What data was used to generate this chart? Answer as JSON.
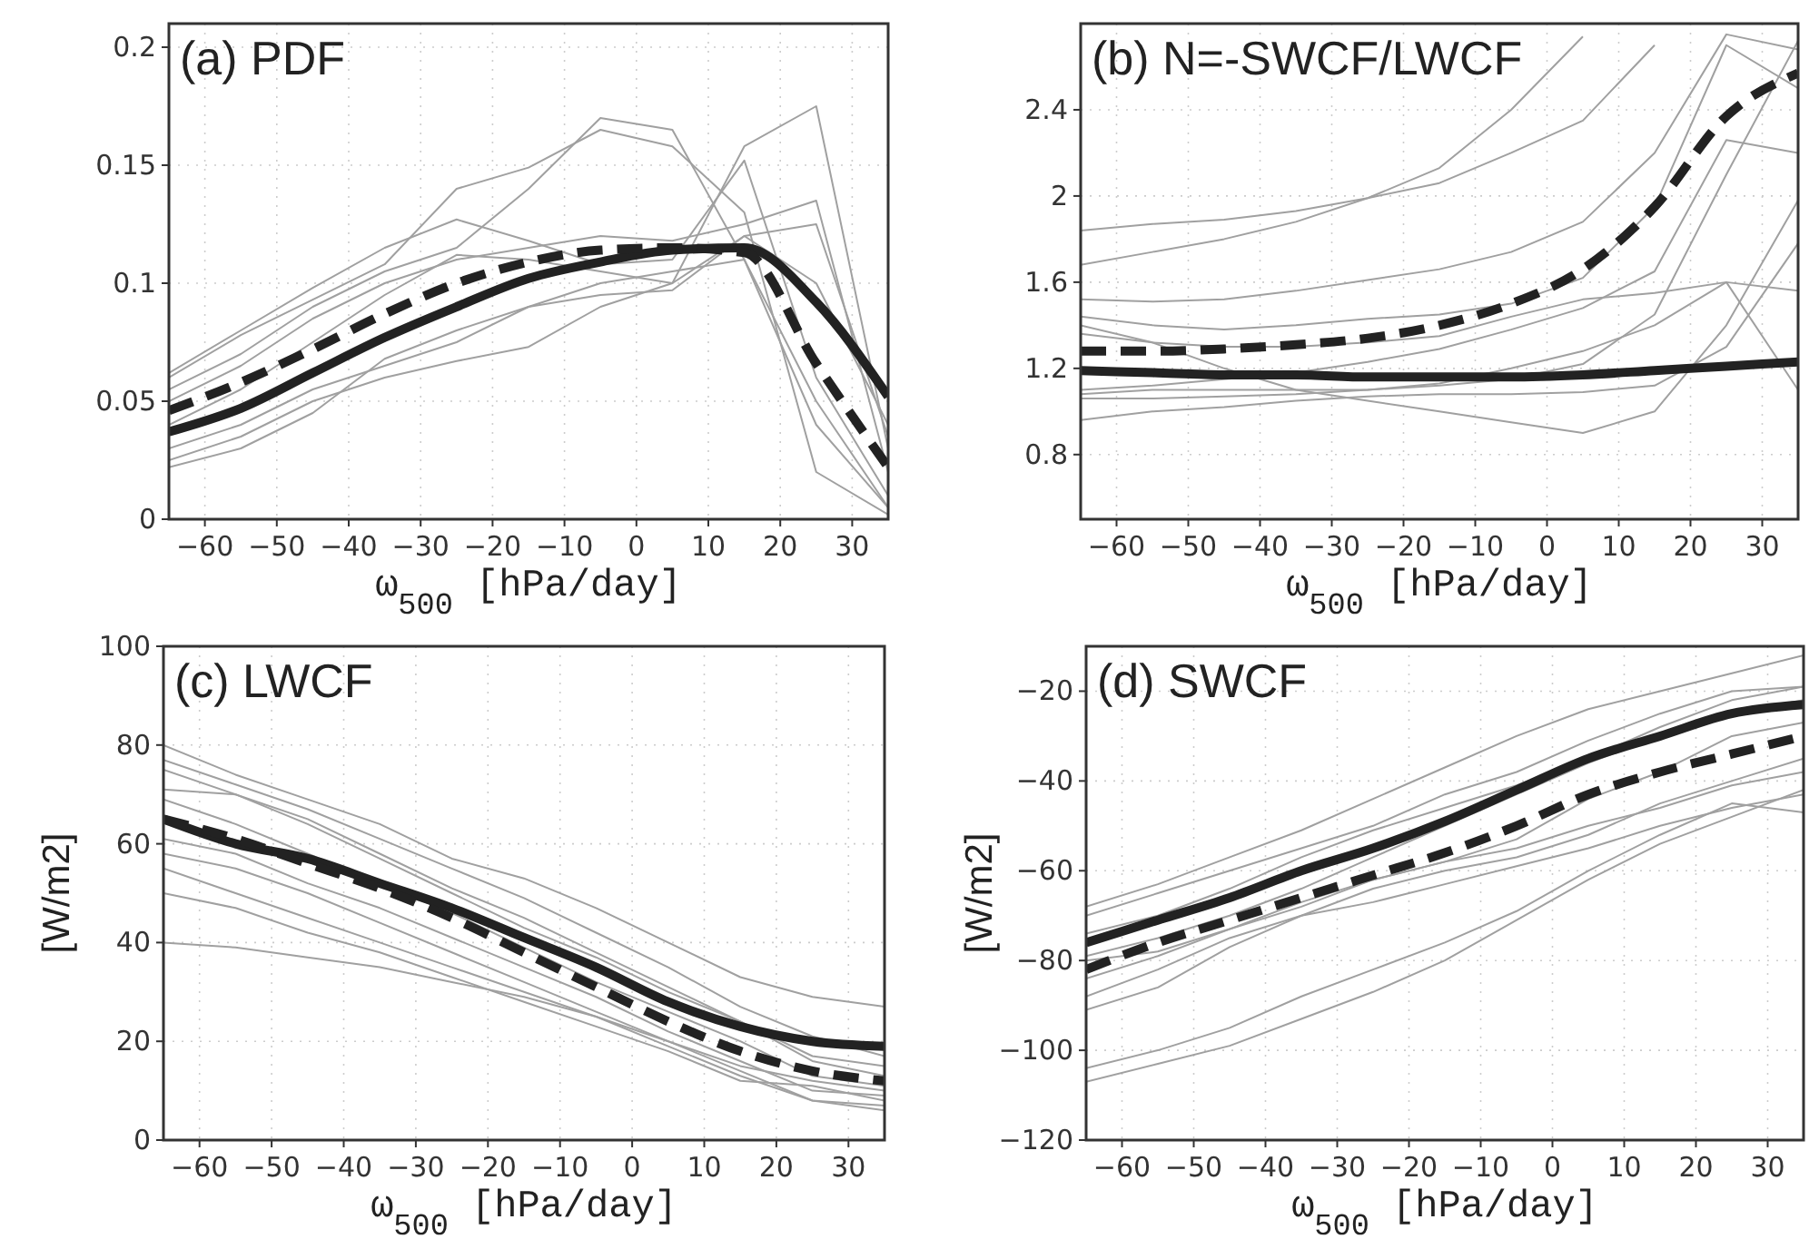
{
  "chart_data": [
    {
      "type": "line",
      "title": "(a) PDF",
      "xlabel": "ω$_{500}$ [hPa/day]",
      "x": [
        -65,
        -55,
        -45,
        -35,
        -25,
        -15,
        -5,
        5,
        15,
        25,
        35
      ],
      "xlim": [
        -65,
        35
      ],
      "xticks": [
        -60,
        -50,
        -40,
        -30,
        -20,
        -10,
        0,
        10,
        20,
        30
      ],
      "ylim": [
        0,
        0.21
      ],
      "yticks": [
        0,
        0.05,
        0.1,
        0.15,
        0.2
      ],
      "grid": true,
      "series": [
        {
          "color": "#a0a0a0",
          "values": [
            0.062,
            0.08,
            0.098,
            0.115,
            0.127,
            0.118,
            0.108,
            0.11,
            0.152,
            0.06,
            0.01
          ]
        },
        {
          "color": "#a0a0a0",
          "values": [
            0.055,
            0.07,
            0.09,
            0.105,
            0.115,
            0.14,
            0.17,
            0.165,
            0.11,
            0.05,
            0.005
          ]
        },
        {
          "color": "#a0a0a0",
          "values": [
            0.05,
            0.065,
            0.085,
            0.1,
            0.11,
            0.115,
            0.12,
            0.118,
            0.125,
            0.135,
            0.02
          ]
        },
        {
          "color": "#a0a0a0",
          "values": [
            0.04,
            0.055,
            0.075,
            0.095,
            0.112,
            0.11,
            0.105,
            0.1,
            0.158,
            0.175,
            0.03
          ]
        },
        {
          "color": "#a0a0a0",
          "values": [
            0.03,
            0.04,
            0.055,
            0.065,
            0.075,
            0.09,
            0.1,
            0.105,
            0.11,
            0.04,
            0.005
          ]
        },
        {
          "color": "#a0a0a0",
          "values": [
            0.025,
            0.035,
            0.05,
            0.06,
            0.067,
            0.073,
            0.09,
            0.1,
            0.12,
            0.125,
            0.035
          ]
        },
        {
          "color": "#a0a0a0",
          "values": [
            0.06,
            0.078,
            0.093,
            0.108,
            0.14,
            0.149,
            0.165,
            0.158,
            0.13,
            0.02,
            0.002
          ]
        },
        {
          "color": "#a0a0a0",
          "values": [
            0.022,
            0.03,
            0.045,
            0.068,
            0.08,
            0.09,
            0.095,
            0.097,
            0.12,
            0.1,
            0.04
          ]
        },
        {
          "color": "#222222",
          "line_style": "solid",
          "values": [
            0.037,
            0.047,
            0.062,
            0.077,
            0.09,
            0.102,
            0.109,
            0.114,
            0.115,
            0.092,
            0.052
          ]
        },
        {
          "color": "#222222",
          "line_style": "dashed",
          "values": [
            0.046,
            0.058,
            0.072,
            0.087,
            0.1,
            0.109,
            0.114,
            0.115,
            0.113,
            0.066,
            0.022
          ]
        }
      ]
    },
    {
      "type": "line",
      "title": "(b) N=-SWCF/LWCF",
      "xlabel": "ω$_{500}$ [hPa/day]",
      "x": [
        -65,
        -55,
        -45,
        -35,
        -25,
        -15,
        -5,
        5,
        15,
        25,
        35
      ],
      "xlim": [
        -65,
        35
      ],
      "xticks": [
        -60,
        -50,
        -40,
        -30,
        -20,
        -10,
        0,
        10,
        20,
        30
      ],
      "ylim": [
        0.5,
        2.8
      ],
      "yticks": [
        0.8,
        1.2,
        1.6,
        2,
        2.4
      ],
      "grid": true,
      "series": [
        {
          "color": "#a0a0a0",
          "values": [
            1.84,
            1.87,
            1.89,
            1.93,
            1.99,
            2.06,
            2.2,
            2.35,
            2.7,
            null,
            null
          ]
        },
        {
          "color": "#a0a0a0",
          "values": [
            1.68,
            1.74,
            1.8,
            1.88,
            1.99,
            2.13,
            2.4,
            2.74,
            null,
            null,
            null
          ]
        },
        {
          "color": "#a0a0a0",
          "values": [
            1.52,
            1.51,
            1.52,
            1.56,
            1.61,
            1.66,
            1.74,
            1.88,
            2.2,
            2.75,
            2.68
          ]
        },
        {
          "color": "#a0a0a0",
          "values": [
            1.44,
            1.4,
            1.38,
            1.4,
            1.43,
            1.45,
            1.5,
            1.62,
            1.95,
            2.7,
            2.5
          ]
        },
        {
          "color": "#a0a0a0",
          "values": [
            1.36,
            1.32,
            1.3,
            1.3,
            1.32,
            1.35,
            1.44,
            1.52,
            1.55,
            1.6,
            1.56
          ]
        },
        {
          "color": "#a0a0a0",
          "values": [
            1.1,
            1.12,
            1.15,
            1.18,
            1.23,
            1.29,
            1.38,
            1.48,
            1.65,
            2.26,
            2.2
          ]
        },
        {
          "color": "#a0a0a0",
          "values": [
            1.08,
            1.1,
            1.1,
            1.1,
            1.1,
            1.12,
            1.15,
            1.22,
            1.45,
            2.1,
            2.72
          ]
        },
        {
          "color": "#a0a0a0",
          "values": [
            0.96,
            1.0,
            1.02,
            1.05,
            1.07,
            1.08,
            1.08,
            1.09,
            1.12,
            1.3,
            1.78
          ]
        },
        {
          "color": "#a0a0a0",
          "values": [
            1.4,
            1.32,
            1.2,
            1.1,
            1.05,
            1.0,
            0.95,
            0.9,
            1.0,
            1.4,
            1.98
          ]
        },
        {
          "color": "#a0a0a0",
          "values": [
            1.06,
            1.06,
            1.07,
            1.08,
            1.1,
            1.13,
            1.2,
            1.28,
            1.4,
            1.6,
            1.1
          ]
        },
        {
          "color": "#222222",
          "line_style": "solid",
          "values": [
            1.19,
            1.18,
            1.17,
            1.17,
            1.16,
            1.16,
            1.16,
            1.17,
            1.19,
            1.21,
            1.23
          ]
        },
        {
          "color": "#222222",
          "line_style": "dashed",
          "values": [
            1.28,
            1.28,
            1.29,
            1.31,
            1.34,
            1.4,
            1.5,
            1.66,
            1.95,
            2.37,
            2.57
          ]
        }
      ]
    },
    {
      "type": "line",
      "title": "(c) LWCF",
      "xlabel": "ω$_{500}$ [hPa/day]",
      "ylabel": "[W/m2]",
      "x": [
        -65,
        -55,
        -45,
        -35,
        -25,
        -15,
        -5,
        5,
        15,
        25,
        35
      ],
      "xlim": [
        -65,
        35
      ],
      "xticks": [
        -60,
        -50,
        -40,
        -30,
        -20,
        -10,
        0,
        10,
        20,
        30
      ],
      "ylim": [
        0,
        100
      ],
      "yticks": [
        0,
        20,
        40,
        60,
        80,
        100
      ],
      "grid": true,
      "series": [
        {
          "color": "#a0a0a0",
          "values": [
            80,
            74,
            69,
            64,
            57,
            53,
            47,
            40,
            33,
            29,
            27
          ]
        },
        {
          "color": "#a0a0a0",
          "values": [
            77,
            72,
            67,
            61,
            55,
            49,
            42,
            35,
            27,
            21,
            17
          ]
        },
        {
          "color": "#a0a0a0",
          "values": [
            75,
            70,
            65,
            58,
            51,
            45,
            38,
            31,
            24,
            17,
            15
          ]
        },
        {
          "color": "#a0a0a0",
          "values": [
            71,
            70,
            64,
            57,
            50,
            43,
            37,
            30,
            24,
            16,
            13
          ]
        },
        {
          "color": "#a0a0a0",
          "values": [
            69,
            64,
            58,
            52,
            46,
            39,
            32,
            26,
            20,
            13,
            11
          ]
        },
        {
          "color": "#a0a0a0",
          "values": [
            61,
            58,
            52,
            47,
            41,
            35,
            29,
            22,
            16,
            10,
            9
          ]
        },
        {
          "color": "#a0a0a0",
          "values": [
            58,
            55,
            50,
            44,
            38,
            32,
            26,
            20,
            14,
            8,
            7
          ]
        },
        {
          "color": "#a0a0a0",
          "values": [
            55,
            50,
            45,
            40,
            35,
            30,
            25,
            19,
            13,
            8,
            6
          ]
        },
        {
          "color": "#a0a0a0",
          "values": [
            50,
            47,
            42,
            38,
            33,
            28,
            23,
            18,
            12,
            11,
            8
          ]
        },
        {
          "color": "#a0a0a0",
          "values": [
            40,
            39,
            37,
            35,
            32,
            29,
            25,
            20,
            15,
            12,
            10
          ]
        },
        {
          "color": "#222222",
          "line_style": "solid",
          "values": [
            65,
            60,
            57,
            52,
            47,
            41,
            35,
            28,
            23,
            20,
            19
          ]
        },
        {
          "color": "#222222",
          "line_style": "dashed",
          "values": [
            65,
            61,
            56,
            51,
            45,
            38,
            31,
            24,
            18,
            14,
            12
          ]
        }
      ]
    },
    {
      "type": "line",
      "title": "(d) SWCF",
      "xlabel": "ω$_{500}$ [hPa/day]",
      "ylabel": "[W/m2]",
      "x": [
        -65,
        -55,
        -45,
        -35,
        -25,
        -15,
        -5,
        5,
        15,
        25,
        35
      ],
      "xlim": [
        -65,
        35
      ],
      "xticks": [
        -60,
        -50,
        -40,
        -30,
        -20,
        -10,
        0,
        10,
        20,
        30
      ],
      "ylim": [
        -120,
        -10
      ],
      "yticks": [
        -120,
        -100,
        -80,
        -60,
        -40,
        -20
      ],
      "grid": true,
      "series": [
        {
          "color": "#a0a0a0",
          "values": [
            -68,
            -63,
            -57,
            -51,
            -44,
            -37,
            -30,
            -24,
            -20,
            -16,
            -12
          ]
        },
        {
          "color": "#a0a0a0",
          "values": [
            -70,
            -65,
            -60,
            -55,
            -50,
            -43,
            -38,
            -31,
            -25,
            -20,
            -19
          ]
        },
        {
          "color": "#a0a0a0",
          "values": [
            -74,
            -70,
            -64,
            -57,
            -51,
            -46,
            -41,
            -35,
            -28,
            -22,
            -19
          ]
        },
        {
          "color": "#a0a0a0",
          "values": [
            -79,
            -75,
            -70,
            -64,
            -57,
            -50,
            -43,
            -36,
            -30,
            -25,
            -22
          ]
        },
        {
          "color": "#a0a0a0",
          "values": [
            -84,
            -79,
            -73,
            -68,
            -62,
            -58,
            -53,
            -44,
            -38,
            -30,
            -27
          ]
        },
        {
          "color": "#a0a0a0",
          "values": [
            -88,
            -82,
            -75,
            -70,
            -64,
            -60,
            -57,
            -52,
            -45,
            -40,
            -35
          ]
        },
        {
          "color": "#a0a0a0",
          "values": [
            -91,
            -86,
            -77,
            -70,
            -67,
            -63,
            -59,
            -55,
            -50,
            -46,
            -43
          ]
        },
        {
          "color": "#a0a0a0",
          "values": [
            -104,
            -100,
            -95,
            -88,
            -82,
            -76,
            -69,
            -60,
            -52,
            -45,
            -47
          ]
        },
        {
          "color": "#a0a0a0",
          "values": [
            -107,
            -103,
            -99,
            -93,
            -87,
            -80,
            -71,
            -62,
            -54,
            -48,
            -42
          ]
        },
        {
          "color": "#a0a0a0",
          "values": [
            -80,
            -78,
            -73,
            -67,
            -62,
            -58,
            -55,
            -50,
            -46,
            -41,
            -38
          ]
        },
        {
          "color": "#222222",
          "line_style": "solid",
          "values": [
            -76,
            -71,
            -66,
            -60,
            -55,
            -49,
            -42,
            -35,
            -30,
            -25,
            -23
          ]
        },
        {
          "color": "#222222",
          "line_style": "dashed",
          "values": [
            -82,
            -76,
            -71,
            -66,
            -61,
            -56,
            -50,
            -43,
            -38,
            -34,
            -30
          ]
        }
      ]
    }
  ]
}
